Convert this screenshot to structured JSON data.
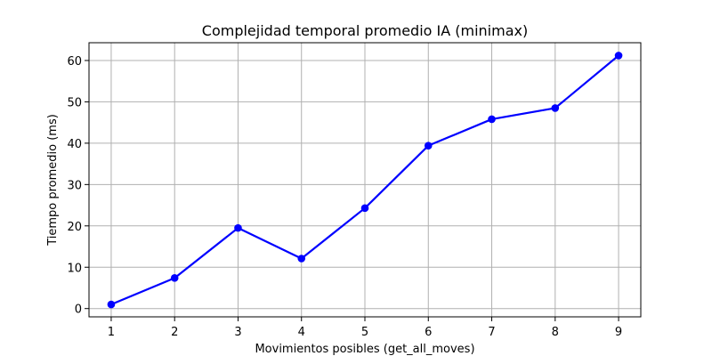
{
  "chart_data": {
    "type": "line",
    "title": "Complejidad temporal promedio IA (minimax)",
    "xlabel": "Movimientos posibles (get_all_moves)",
    "ylabel": "Tiempo promedio (ms)",
    "x": [
      1,
      2,
      3,
      4,
      5,
      6,
      7,
      8,
      9
    ],
    "series": [
      {
        "values": [
          1.0,
          7.4,
          19.5,
          12.1,
          24.3,
          39.4,
          45.8,
          48.5,
          61.2
        ],
        "color": "#0000ff",
        "marker": "circle"
      }
    ],
    "xlim": [
      0.65,
      9.35
    ],
    "ylim": [
      -2.0,
      64.3
    ],
    "xticks": [
      1,
      2,
      3,
      4,
      5,
      6,
      7,
      8,
      9
    ],
    "yticks": [
      0,
      10,
      20,
      30,
      40,
      50,
      60
    ],
    "grid": true,
    "colors": {
      "line": "#0000ff",
      "grid": "#b0b0b0",
      "axes": "#000000"
    }
  }
}
